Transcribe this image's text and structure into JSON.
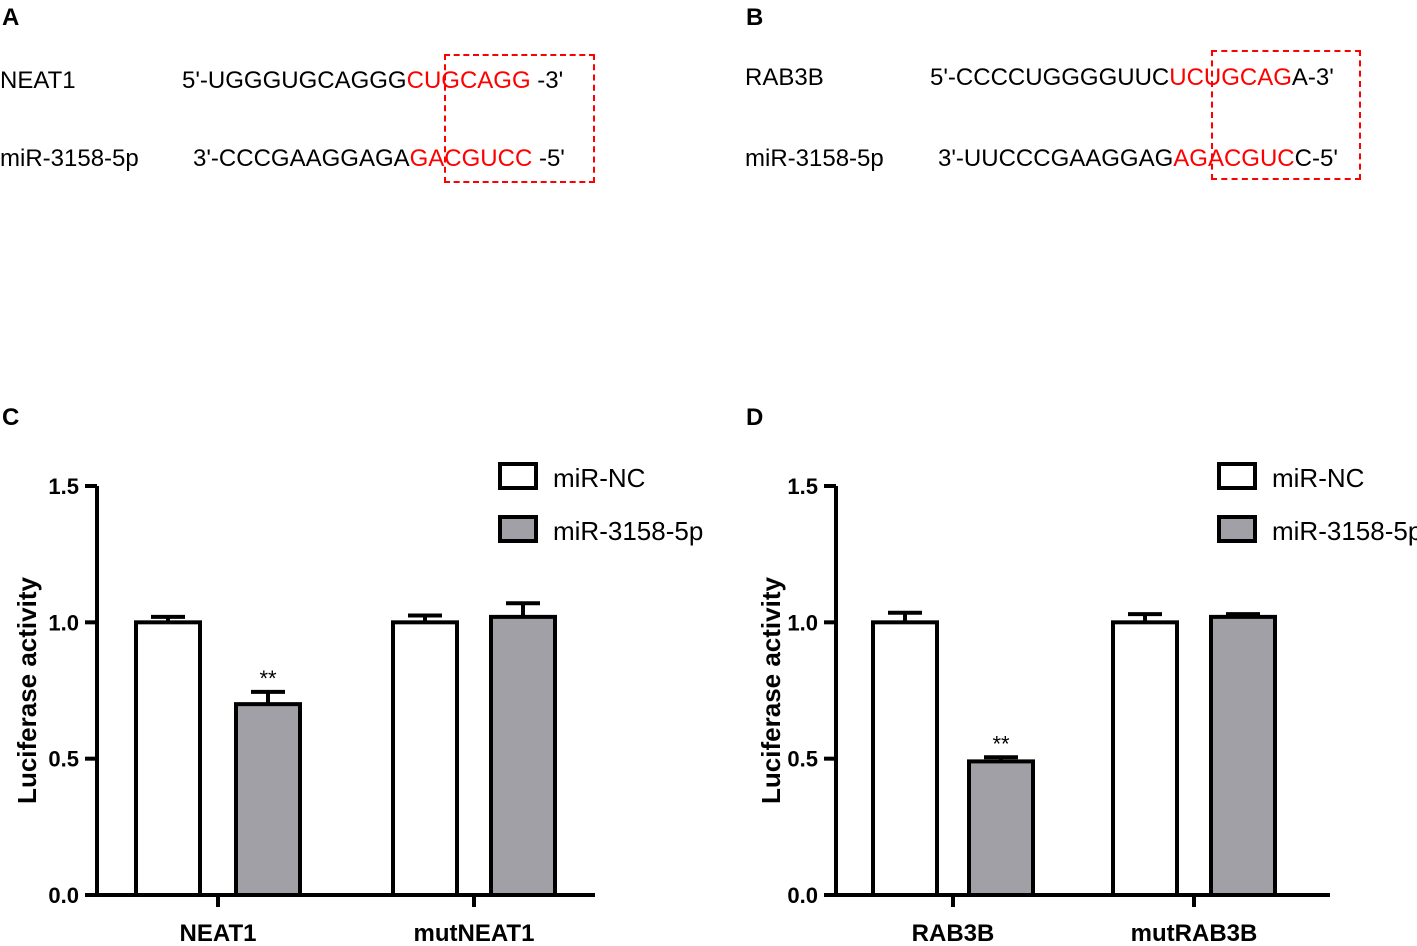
{
  "panels": {
    "A": {
      "letter": "A",
      "row1": {
        "label": "NEAT1",
        "prefix": "5'-UGGGUGCAGGG",
        "highlight": "CUGCAGG",
        "suffix": " -3'"
      },
      "row2": {
        "label": "miR-3158-5p",
        "prefix": "3'-CCCGAAGGAGA",
        "highlight": "GACGUCC",
        "suffix": " -5'"
      }
    },
    "B": {
      "letter": "B",
      "row1": {
        "label": "RAB3B",
        "prefix": "5'-CCCCUGGGGUUC",
        "highlight": "UCUGCAG",
        "suffix": "A-3'"
      },
      "row2": {
        "label": "miR-3158-5p",
        "prefix": "3'-UUCCCGAAGGAG",
        "highlight": "AGACGUC",
        "suffix": "C-5'"
      }
    },
    "C": {
      "letter": "C"
    },
    "D": {
      "letter": "D"
    }
  },
  "colors": {
    "highlight": "#ff0000",
    "bar_nc": "#ffffff",
    "bar_mir": "#a0a0a6"
  },
  "chart_data": [
    {
      "type": "bar",
      "panel": "C",
      "categories": [
        "NEAT1",
        "mutNEAT1"
      ],
      "series": [
        {
          "name": "miR-NC",
          "values": [
            1.0,
            1.0
          ],
          "errors": [
            0.02,
            0.025
          ]
        },
        {
          "name": "miR-3158-5p",
          "values": [
            0.7,
            1.02
          ],
          "errors": [
            0.045,
            0.05
          ]
        }
      ],
      "annotations": [
        {
          "category": "NEAT1",
          "series": "miR-3158-5p",
          "text": "**"
        }
      ],
      "ylabel": "Luciferase activity",
      "ylim": [
        0,
        1.5
      ],
      "yticks": [
        "0.0",
        "0.5",
        "1.0",
        "1.5"
      ],
      "legend": "top-right"
    },
    {
      "type": "bar",
      "panel": "D",
      "categories": [
        "RAB3B",
        "mutRAB3B"
      ],
      "series": [
        {
          "name": "miR-NC",
          "values": [
            1.0,
            1.0
          ],
          "errors": [
            0.035,
            0.03
          ]
        },
        {
          "name": "miR-3158-5p",
          "values": [
            0.49,
            1.02
          ],
          "errors": [
            0.015,
            0.01
          ]
        }
      ],
      "annotations": [
        {
          "category": "RAB3B",
          "series": "miR-3158-5p",
          "text": "**"
        }
      ],
      "ylabel": "Luciferase activity",
      "ylim": [
        0,
        1.5
      ],
      "yticks": [
        "0.0",
        "0.5",
        "1.0",
        "1.5"
      ],
      "legend": "top-right"
    }
  ]
}
